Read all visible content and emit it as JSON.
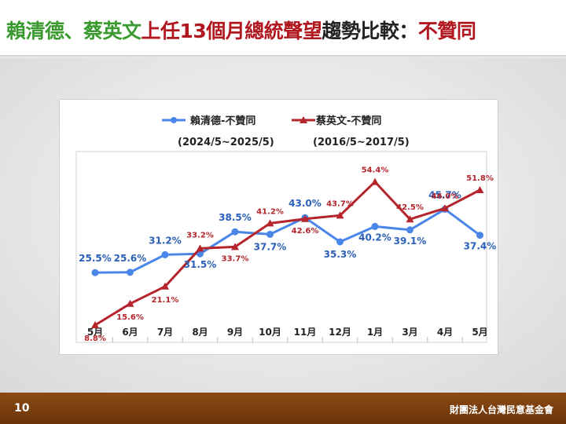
{
  "title": {
    "part1": "賴清德、蔡英文",
    "part2": "上任13個月總統聲望",
    "part3": "趨勢比較：",
    "part4": "不贊同"
  },
  "footer": {
    "page_number": "10",
    "organization": "財團法人台灣民意基金會"
  },
  "colors": {
    "lai": "#4a86e8",
    "tsai": "#b5252b",
    "title_green": "#3a9a2f",
    "title_red": "#b0171f",
    "footer_brown": "#7a3f10"
  },
  "chart_data": {
    "type": "line",
    "categories": [
      "5月",
      "6月",
      "7月",
      "8月",
      "9月",
      "10月",
      "11月",
      "12月",
      "1月",
      "3月",
      "4月",
      "5月"
    ],
    "ylim": [
      0,
      65
    ],
    "grid": false,
    "legend_position": "top",
    "series": [
      {
        "name": "賴清德-不贊同",
        "period": "(2024/5~2025/5)",
        "values": [
          25.5,
          25.6,
          31.2,
          31.5,
          38.5,
          37.7,
          43.0,
          35.3,
          40.2,
          39.1,
          45.7,
          37.4
        ],
        "labels": [
          "25.5%",
          "25.6%",
          "31.2%",
          "31.5%",
          "38.5%",
          "37.7%",
          "43.0%",
          "35.3%",
          "40.2%",
          "39.1%",
          "45.7%",
          "37.4%"
        ],
        "marker": "circle"
      },
      {
        "name": "蔡英文-不贊同",
        "period": "(2016/5~2017/5)",
        "values": [
          8.8,
          15.6,
          21.1,
          33.2,
          33.7,
          41.2,
          42.6,
          43.7,
          54.4,
          42.5,
          46.0,
          51.8
        ],
        "labels": [
          "8.8%",
          "15.6%",
          "21.1%",
          "33.2%",
          "33.7%",
          "41.2%",
          "42.6%",
          "43.7%",
          "54.4%",
          "42.5%",
          "46.0%",
          "51.8%"
        ],
        "marker": "triangle"
      }
    ]
  }
}
